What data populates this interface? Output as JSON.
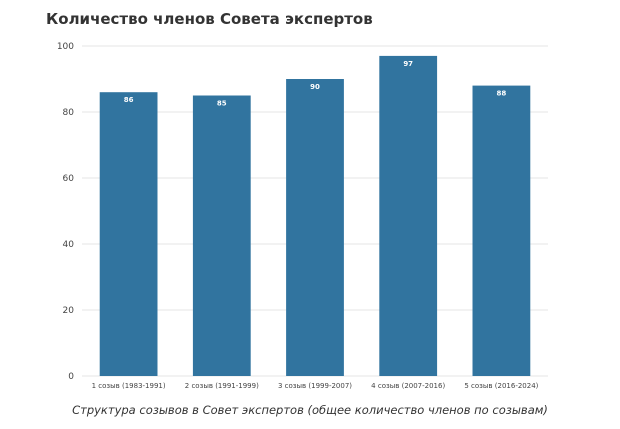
{
  "chart_data": {
    "type": "bar",
    "title": "Количество членов Совета экспертов",
    "caption": "Структура созывов в Совет экспертов (общее количество членов по созывам)",
    "xlabel": "",
    "ylabel": "",
    "categories": [
      "1 созыв (1983-1991)",
      "2 созыв (1991-1999)",
      "3 созыв (1999-2007)",
      "4 созыв (2007-2016)",
      "5 созыв (2016-2024)"
    ],
    "values": [
      86,
      85,
      90,
      97,
      88
    ],
    "data_labels": [
      "86",
      "85",
      "90",
      "97",
      "88"
    ],
    "ylim": [
      0,
      100
    ],
    "yticks": [
      0,
      20,
      40,
      60,
      80,
      100
    ],
    "ytick_labels": [
      "0",
      "20",
      "40",
      "60",
      "80",
      "100"
    ],
    "grid": true,
    "legend": "none",
    "bar_color": "#31749f",
    "grid_color": "#e6e6e6"
  }
}
